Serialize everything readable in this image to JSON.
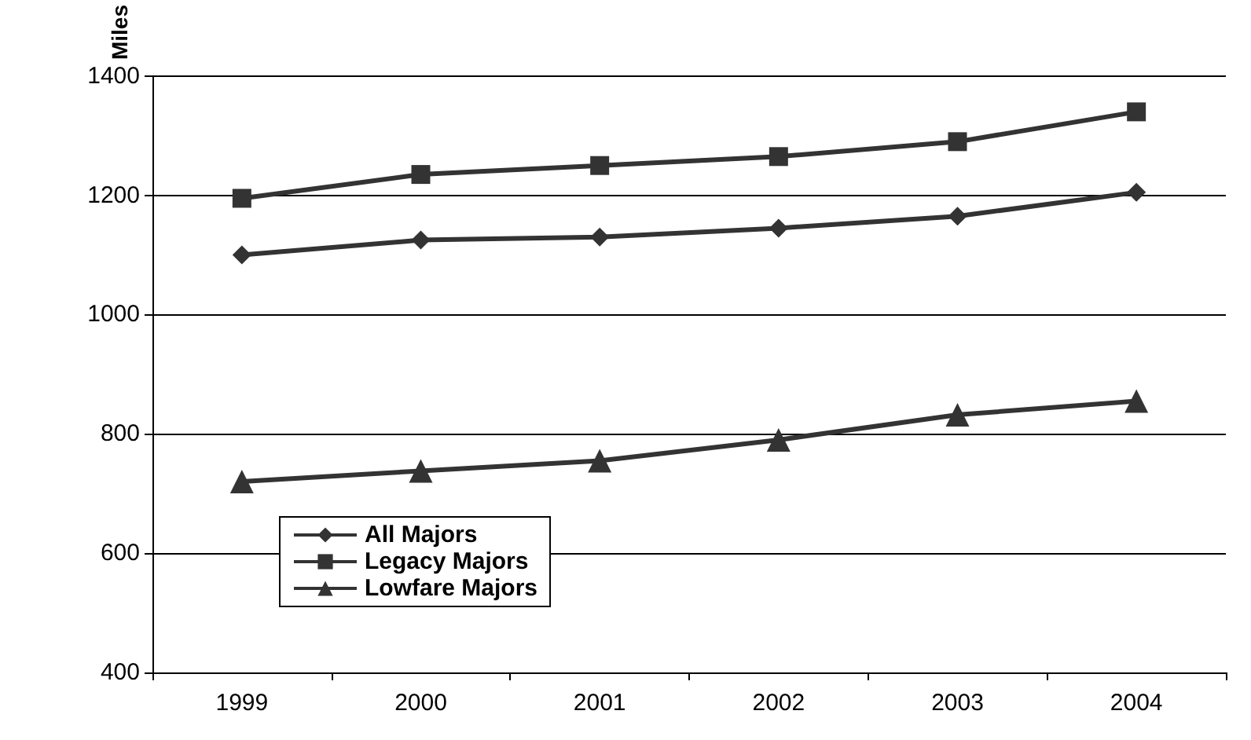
{
  "chart_data": {
    "type": "line",
    "ylabel": "Miles",
    "categories": [
      "1999",
      "2000",
      "2001",
      "2002",
      "2003",
      "2004"
    ],
    "series": [
      {
        "name": "All Majors",
        "color": "#333333",
        "marker": "diamond",
        "values": [
          1100,
          1125,
          1130,
          1145,
          1165,
          1205
        ]
      },
      {
        "name": "Legacy Majors",
        "color": "#333333",
        "marker": "square",
        "values": [
          1195,
          1235,
          1250,
          1265,
          1290,
          1340
        ]
      },
      {
        "name": "Lowfare Majors",
        "color": "#333333",
        "marker": "triangle",
        "values": [
          720,
          738,
          755,
          790,
          832,
          855
        ]
      }
    ],
    "ylim": [
      400,
      1400
    ],
    "yticks": [
      400,
      600,
      800,
      1000,
      1200,
      1400
    ],
    "grid": "y",
    "legend": "bottom left"
  }
}
